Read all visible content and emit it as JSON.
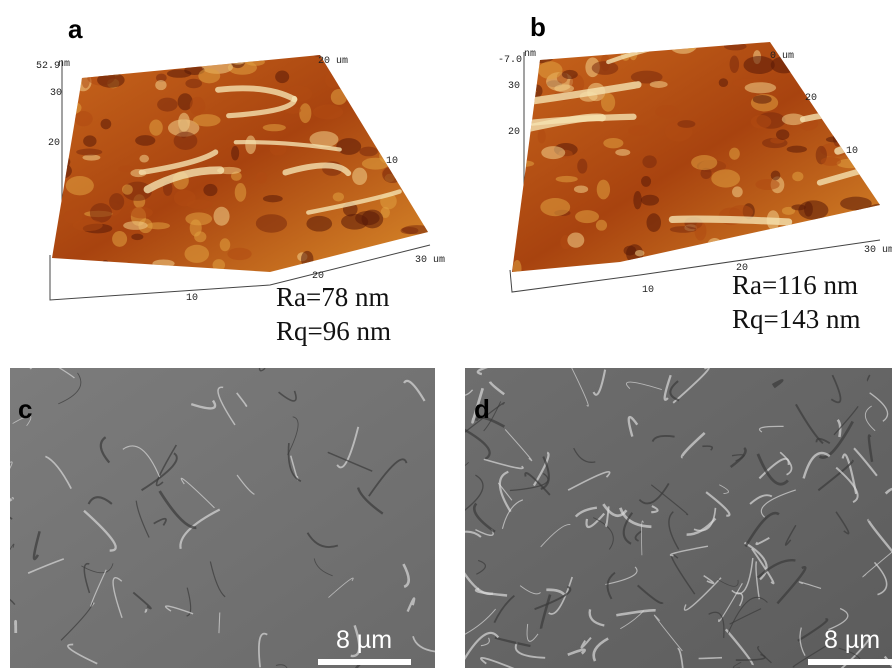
{
  "panels": [
    {
      "label": "a",
      "axis_labels": [
        "52.9",
        "nm",
        "30",
        "20",
        "20 um",
        "10",
        "30 um",
        "20",
        "10"
      ],
      "roughness": [
        "Ra=78 nm",
        "Rq=96 nm"
      ]
    },
    {
      "label": "b",
      "axis_labels": [
        "-7.0",
        "nm",
        "30",
        "20",
        "0 um",
        "20",
        "10",
        "30 um",
        "20",
        "10"
      ],
      "roughness": [
        "Ra=116 nm",
        "Rq=143 nm"
      ]
    },
    {
      "label": "c",
      "scale_bar": "8 µm"
    },
    {
      "label": "d",
      "scale_bar": "8 µm"
    }
  ]
}
